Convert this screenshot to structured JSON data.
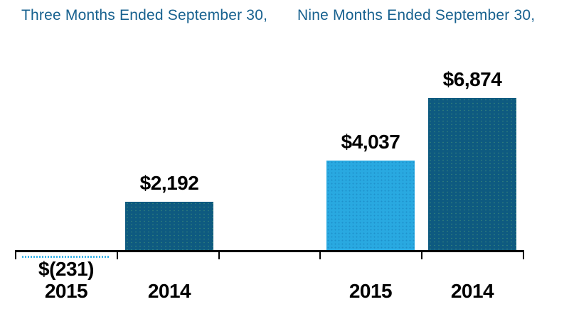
{
  "page": {
    "background": "#FFFFFF"
  },
  "headers": {
    "three_months": "Three Months Ended September 30,",
    "nine_months": "Nine Months Ended September 30,"
  },
  "colors": {
    "header_text": "#17618F",
    "series_2014_bar": "#0E5A80",
    "series_2015_bar": "#29A9E1",
    "value_label_text": "#000000",
    "year_label_text": "#000000",
    "axis": "#000000"
  },
  "chart_data": {
    "type": "bar",
    "title": "",
    "xlabel": "",
    "ylabel": "",
    "grid": false,
    "legend": "none",
    "ylim": [
      -231,
      6874
    ],
    "categories": [
      "Three Months Ended September 30,",
      "Nine Months Ended September 30,"
    ],
    "series": [
      {
        "name": "2015",
        "values": [
          -231,
          4037
        ],
        "color": "#29A9E1"
      },
      {
        "name": "2014",
        "values": [
          2192,
          6874
        ],
        "color": "#0E5A80"
      }
    ],
    "groups": [
      {
        "period": "Three Months Ended September 30,",
        "bars": [
          {
            "year": "2015",
            "value": -231,
            "label": "$(231)"
          },
          {
            "year": "2014",
            "value": 2192,
            "label": "$2,192"
          }
        ]
      },
      {
        "period": "Nine Months Ended September 30,",
        "bars": [
          {
            "year": "2015",
            "value": 4037,
            "label": "$4,037"
          },
          {
            "year": "2014",
            "value": 6874,
            "label": "$6,874"
          }
        ]
      }
    ]
  }
}
